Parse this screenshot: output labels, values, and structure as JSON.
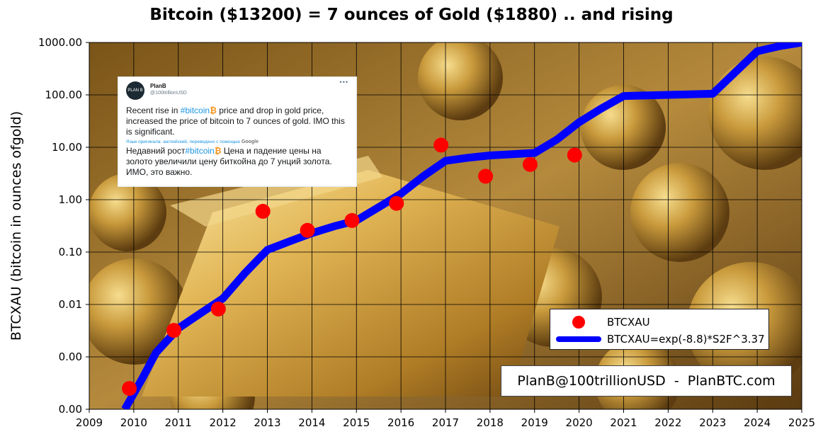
{
  "chart_data": {
    "type": "scatter",
    "title": "Bitcoin ($13200) = 7 ounces of Gold ($1880) .. and rising",
    "ylabel": "BTCXAU (bitcoin in ounces ofgold)",
    "xlabel": "",
    "y_scale": "log",
    "xlim": [
      2009,
      2025
    ],
    "ylim": [
      0.0001,
      1000
    ],
    "grid": true,
    "legend_position": "bottom-right",
    "x_ticks": [
      "2009",
      "2010",
      "2011",
      "2012",
      "2013",
      "2014",
      "2015",
      "2016",
      "2017",
      "2018",
      "2019",
      "2020",
      "2021",
      "2022",
      "2023",
      "2024",
      "2025"
    ],
    "y_ticks": [
      {
        "value": 1000,
        "label": "1000.00"
      },
      {
        "value": 100,
        "label": "100.00"
      },
      {
        "value": 10,
        "label": "10.00"
      },
      {
        "value": 1,
        "label": "1.00"
      },
      {
        "value": 0.1,
        "label": "0.10"
      },
      {
        "value": 0.01,
        "label": "0.01"
      },
      {
        "value": 0.001,
        "label": "0.00"
      },
      {
        "value": 0.0001,
        "label": "0.00"
      }
    ],
    "series": [
      {
        "name": "BTCXAU",
        "style": "markers",
        "color": "#ff0000",
        "x": [
          2009.9,
          2010.9,
          2011.9,
          2012.9,
          2013.9,
          2014.9,
          2015.9,
          2016.9,
          2017.9,
          2018.9,
          2019.9
        ],
        "y": [
          0.00025,
          0.0032,
          0.0082,
          0.6,
          0.26,
          0.4,
          0.85,
          11,
          2.8,
          4.7,
          7.1
        ]
      },
      {
        "name": "BTCXAU=exp(-8.8)*S2F^3.37",
        "style": "line",
        "color": "#0000ff",
        "x": [
          2009.8,
          2010.2,
          2010.5,
          2011.0,
          2011.5,
          2012.0,
          2012.5,
          2013.0,
          2013.5,
          2014.0,
          2014.5,
          2015.0,
          2015.5,
          2016.0,
          2016.5,
          2017.0,
          2017.5,
          2018.0,
          2018.5,
          2019.0,
          2019.5,
          2020.0,
          2020.5,
          2021.0,
          2022.0,
          2023.0,
          2024.0,
          2024.5,
          2025.0
        ],
        "y": [
          0.0001,
          0.0004,
          0.0012,
          0.0035,
          0.0068,
          0.013,
          0.04,
          0.11,
          0.16,
          0.23,
          0.31,
          0.4,
          0.72,
          1.3,
          2.8,
          5.5,
          6.3,
          7.0,
          7.4,
          7.8,
          14,
          30,
          55,
          95,
          100,
          105,
          680,
          850,
          1000
        ]
      }
    ],
    "annotations": [
      {
        "type": "credit-box",
        "text": "PlanB@100trillionUSD  -  PlanBTC.com"
      }
    ]
  },
  "tweet": {
    "author": "PlanB",
    "handle": "@100trillionUSD",
    "avatar_text": "PLAN B",
    "more": "•••",
    "text_pre": "Recent rise in ",
    "hashtag": "#bitcoin",
    "text_post": " price and drop in gold price, increased the price of bitcoin to 7 ounces of gold. IMO this is significant.",
    "translate_note": "Язык оригинала: английский, переведено с помощью",
    "translate_brand": "Google",
    "translated_pre": "Недавний рост",
    "translated_hashtag": "#bitcoin",
    "translated_post": " Цена и падение цены на золото увеличили цену биткойна до 7 унций золота. ИМО, это важно.",
    "btc_glyph": "₿"
  },
  "colors": {
    "points": "#ff0000",
    "model_line": "#0000ff",
    "background_photo": "#8a6a2a"
  }
}
